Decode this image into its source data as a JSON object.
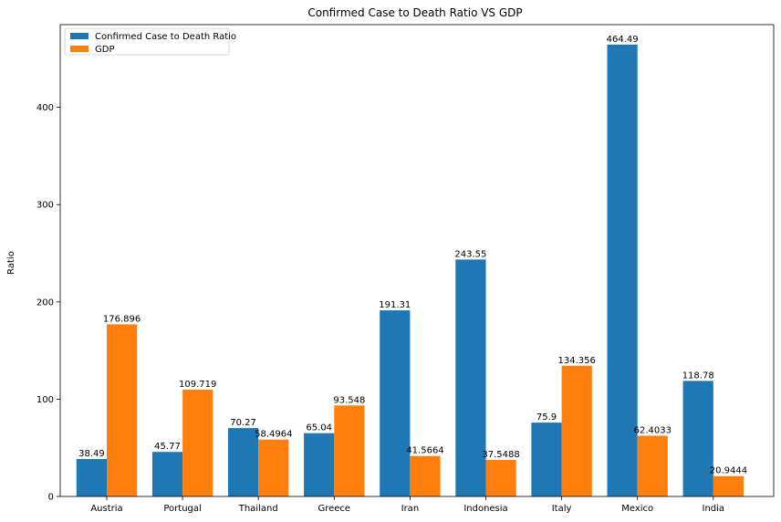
{
  "chart_data": {
    "type": "bar",
    "title": "Confirmed Case to Death Ratio VS GDP",
    "xlabel": "",
    "ylabel": "Ratio",
    "ylim": [
      0,
      485
    ],
    "yticks": [
      0,
      100,
      200,
      300,
      400
    ],
    "categories": [
      "Austria",
      "Portugal",
      "Thailand",
      "Greece",
      "Iran",
      "Indonesia",
      "Italy",
      "Mexico",
      "India"
    ],
    "series": [
      {
        "name": "Confirmed Case to Death Ratio",
        "color": "#1f77b4",
        "values": [
          38.49,
          45.77,
          70.27,
          65.04,
          191.31,
          243.55,
          75.9,
          464.49,
          118.78
        ],
        "labels": [
          "38.49",
          "45.77",
          "70.27",
          "65.04",
          "191.31",
          "243.55",
          "75.9",
          "464.49",
          "118.78"
        ]
      },
      {
        "name": "GDP",
        "color": "#ff7f0e",
        "values": [
          176.896,
          109.719,
          58.4964,
          93.548,
          41.5664,
          37.5488,
          134.356,
          62.4033,
          20.9444
        ],
        "labels": [
          "176.896",
          "109.719",
          "58.4964",
          "93.548",
          "41.5664",
          "37.5488",
          "134.356",
          "62.4033",
          "20.9444"
        ]
      }
    ],
    "legend_position": "top-left",
    "grid": false
  }
}
